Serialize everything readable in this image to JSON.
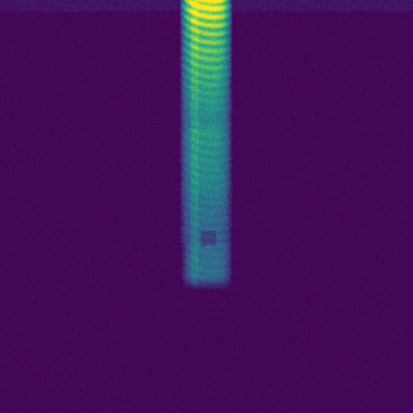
{
  "image": {
    "kind": "spectrogram",
    "colormap": "viridis",
    "colors": {
      "background": "#440154",
      "low": "#440154",
      "mid_low": "#3b528b",
      "mid": "#21918c",
      "mid_high": "#5ec962",
      "high": "#fde725"
    }
  }
}
